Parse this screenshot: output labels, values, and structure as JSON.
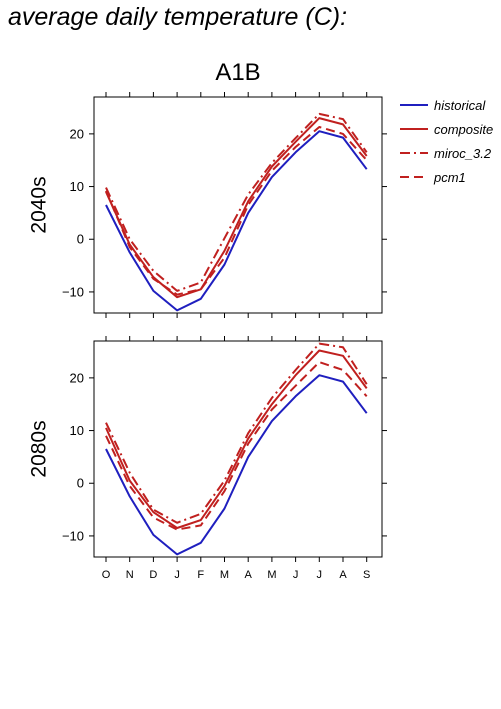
{
  "title": "average daily temperature (C):",
  "scenario": "A1B",
  "colors": {
    "historical": "#1f1fbf",
    "model": "#c0201f",
    "axis": "#000000"
  },
  "chart_data": {
    "type": "line",
    "categories": [
      "O",
      "N",
      "D",
      "J",
      "F",
      "M",
      "A",
      "M",
      "J",
      "J",
      "A",
      "S"
    ],
    "ylim": [
      -14,
      27
    ],
    "yticks": [
      -10,
      0,
      10,
      20
    ],
    "grid": false,
    "legend_position": "right",
    "legend": [
      {
        "name": "historical",
        "style": "solid",
        "color": "historical"
      },
      {
        "name": "composite",
        "style": "solid",
        "color": "model"
      },
      {
        "name": "miroc_3.2",
        "style": "dashdot",
        "color": "model"
      },
      {
        "name": "pcm1",
        "style": "dashed",
        "color": "model"
      }
    ],
    "panels": [
      {
        "label": "2040s",
        "series": [
          {
            "name": "historical",
            "values": [
              6.5,
              -2.5,
              -9.8,
              -13.5,
              -11.3,
              -4.8,
              5.0,
              11.8,
              16.5,
              20.5,
              19.3,
              13.3
            ]
          },
          {
            "name": "composite",
            "values": [
              9.0,
              -1.0,
              -7.2,
              -11.0,
              -9.5,
              -2.2,
              7.2,
              13.8,
              18.5,
              23.0,
              21.8,
              15.8
            ]
          },
          {
            "name": "miroc_3.2",
            "values": [
              9.8,
              0.0,
              -6.0,
              -9.8,
              -8.2,
              0.2,
              8.5,
              14.5,
              19.2,
              23.8,
              22.8,
              16.5
            ]
          },
          {
            "name": "pcm1",
            "values": [
              9.2,
              -1.5,
              -7.5,
              -10.5,
              -9.5,
              -3.5,
              6.5,
              13.0,
              17.5,
              21.3,
              20.0,
              15.0
            ]
          }
        ]
      },
      {
        "label": "2080s",
        "series": [
          {
            "name": "historical",
            "values": [
              6.5,
              -2.5,
              -9.8,
              -13.5,
              -11.3,
              -4.8,
              5.0,
              11.8,
              16.5,
              20.5,
              19.3,
              13.3
            ]
          },
          {
            "name": "composite",
            "values": [
              10.5,
              0.5,
              -5.5,
              -8.5,
              -7.0,
              -0.5,
              8.5,
              15.0,
              20.5,
              25.2,
              24.2,
              18.0
            ]
          },
          {
            "name": "miroc_3.2",
            "values": [
              11.5,
              2.0,
              -5.0,
              -7.5,
              -5.8,
              0.5,
              9.5,
              16.2,
              21.5,
              26.5,
              25.8,
              18.8
            ]
          },
          {
            "name": "pcm1",
            "values": [
              9.0,
              -0.5,
              -6.5,
              -8.8,
              -8.0,
              -1.5,
              7.5,
              14.0,
              18.5,
              23.0,
              21.5,
              16.5
            ]
          }
        ]
      }
    ]
  }
}
